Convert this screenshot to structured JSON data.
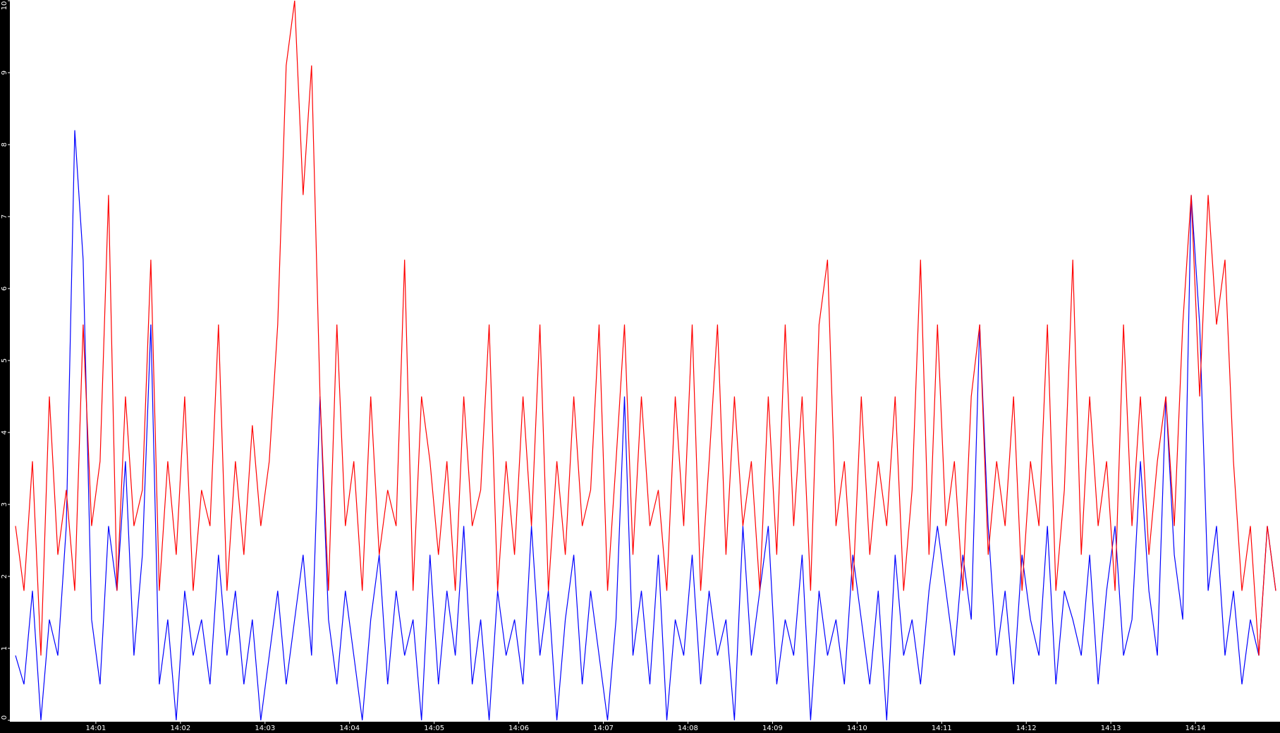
{
  "chart_data": {
    "type": "line",
    "xlim": [
      0,
      15
    ],
    "ylim": [
      0,
      10
    ],
    "xticks": [
      {
        "value": 1,
        "label": "14:01"
      },
      {
        "value": 2,
        "label": "14:02"
      },
      {
        "value": 3,
        "label": "14:03"
      },
      {
        "value": 4,
        "label": "14:04"
      },
      {
        "value": 5,
        "label": "14:05"
      },
      {
        "value": 6,
        "label": "14:06"
      },
      {
        "value": 7,
        "label": "14:07"
      },
      {
        "value": 8,
        "label": "14:08"
      },
      {
        "value": 9,
        "label": "14:09"
      },
      {
        "value": 10,
        "label": "14:10"
      },
      {
        "value": 11,
        "label": "14:11"
      },
      {
        "value": 12,
        "label": "14:12"
      },
      {
        "value": 13,
        "label": "14:13"
      },
      {
        "value": 14,
        "label": "14:14"
      }
    ],
    "yticks": [
      0,
      1,
      2,
      3,
      4,
      5,
      6,
      7,
      8,
      9,
      10
    ],
    "series": [
      {
        "color": "#0000ff",
        "values": [
          0.9,
          0.5,
          1.8,
          0,
          1.4,
          0.9,
          2.7,
          8.2,
          6.4,
          1.4,
          0.5,
          2.7,
          1.8,
          3.6,
          0.9,
          2.3,
          5.5,
          0.5,
          1.4,
          0,
          1.8,
          0.9,
          1.4,
          0.5,
          2.3,
          0.9,
          1.8,
          0.5,
          1.4,
          0,
          0.9,
          1.8,
          0.5,
          1.4,
          2.3,
          0.9,
          4.5,
          1.4,
          0.5,
          1.8,
          0.9,
          0,
          1.4,
          2.3,
          0.5,
          1.8,
          0.9,
          1.4,
          0,
          2.3,
          0.5,
          1.8,
          0.9,
          2.7,
          0.5,
          1.4,
          0,
          1.8,
          0.9,
          1.4,
          0.5,
          2.7,
          0.9,
          1.8,
          0,
          1.4,
          2.3,
          0.5,
          1.8,
          0.9,
          0,
          1.4,
          4.5,
          0.9,
          1.8,
          0.5,
          2.3,
          0,
          1.4,
          0.9,
          2.3,
          0.5,
          1.8,
          0.9,
          1.4,
          0,
          2.7,
          0.9,
          1.8,
          2.7,
          0.5,
          1.4,
          0.9,
          2.3,
          0,
          1.8,
          0.9,
          1.4,
          0.5,
          2.3,
          1.4,
          0.5,
          1.8,
          0,
          2.3,
          0.9,
          1.4,
          0.5,
          1.8,
          2.7,
          1.8,
          0.9,
          2.3,
          1.4,
          5.5,
          2.7,
          0.9,
          1.8,
          0.5,
          2.3,
          1.4,
          0.9,
          2.7,
          0.5,
          1.8,
          1.4,
          0.9,
          2.3,
          0.5,
          1.8,
          2.7,
          0.9,
          1.4,
          3.6,
          1.8,
          0.9,
          4.5,
          2.3,
          1.4,
          7.3,
          5.5,
          1.8,
          2.7,
          0.9,
          1.8,
          0.5,
          1.4,
          0.9,
          2.7,
          1.8
        ]
      },
      {
        "color": "#ff0000",
        "values": [
          2.7,
          1.8,
          3.6,
          0.9,
          4.5,
          2.3,
          3.2,
          1.8,
          5.5,
          2.7,
          3.6,
          7.3,
          1.8,
          4.5,
          2.7,
          3.2,
          6.4,
          1.8,
          3.6,
          2.3,
          4.5,
          1.8,
          3.2,
          2.7,
          5.5,
          1.8,
          3.6,
          2.3,
          4.1,
          2.7,
          3.6,
          5.5,
          9.1,
          10,
          7.3,
          9.1,
          4.5,
          1.8,
          5.5,
          2.7,
          3.6,
          1.8,
          4.5,
          2.3,
          3.2,
          2.7,
          6.4,
          1.8,
          4.5,
          3.6,
          2.3,
          3.6,
          1.8,
          4.5,
          2.7,
          3.2,
          5.5,
          1.8,
          3.6,
          2.3,
          4.5,
          2.7,
          5.5,
          1.8,
          3.6,
          2.3,
          4.5,
          2.7,
          3.2,
          5.5,
          1.8,
          3.6,
          5.5,
          2.3,
          4.5,
          2.7,
          3.2,
          1.8,
          4.5,
          2.7,
          5.5,
          1.8,
          3.6,
          5.5,
          2.3,
          4.5,
          2.7,
          3.6,
          1.8,
          4.5,
          2.3,
          5.5,
          2.7,
          4.5,
          1.8,
          5.5,
          6.4,
          2.7,
          3.6,
          1.8,
          4.5,
          2.3,
          3.6,
          2.7,
          4.5,
          1.8,
          3.2,
          6.4,
          2.3,
          5.5,
          2.7,
          3.6,
          1.8,
          4.5,
          5.5,
          2.3,
          3.6,
          2.7,
          4.5,
          1.8,
          3.6,
          2.7,
          5.5,
          1.8,
          3.2,
          6.4,
          2.3,
          4.5,
          2.7,
          3.6,
          1.8,
          5.5,
          2.7,
          4.5,
          2.3,
          3.6,
          4.5,
          2.7,
          5.5,
          7.3,
          4.5,
          7.3,
          5.5,
          6.4,
          3.6,
          1.8,
          2.7,
          0.9,
          2.7,
          1.8
        ]
      }
    ]
  }
}
